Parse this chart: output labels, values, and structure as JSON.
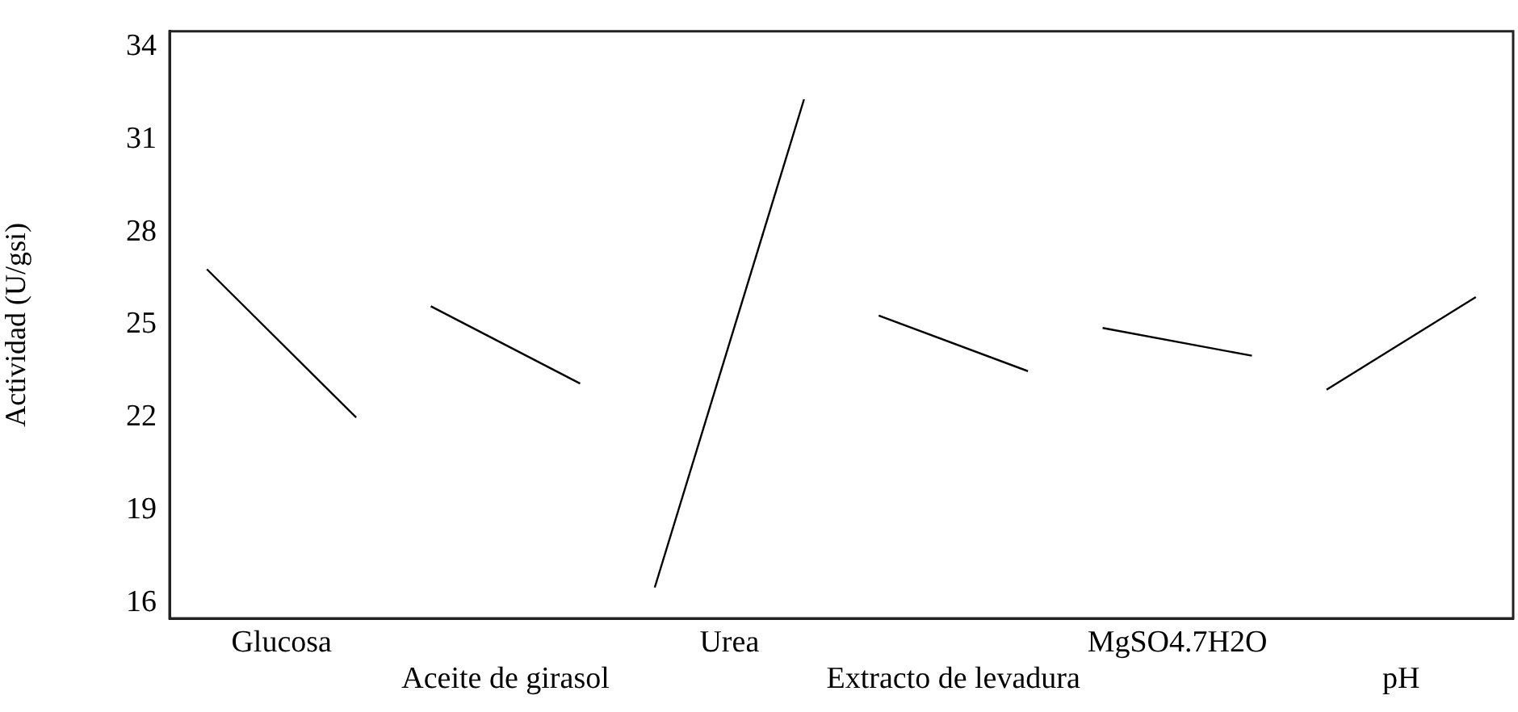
{
  "chart_data": {
    "type": "line",
    "ylabel": "Actividad (U/gsi)",
    "categories": [
      null,
      "Glucosa",
      null,
      null,
      "Aceite de girasol",
      null,
      null,
      "Urea",
      null,
      null,
      "Extracto de levadura",
      null,
      null,
      "MgSO4.7H2O",
      null,
      null,
      "pH",
      null
    ],
    "series": [
      {
        "color": "#000000",
        "values": [
          26.8,
          null,
          22.0,
          null,
          null,
          null,
          null,
          null,
          null,
          null,
          null,
          null,
          null,
          null,
          null,
          null,
          null,
          null
        ]
      },
      {
        "color": "#000000",
        "values": [
          null,
          null,
          null,
          25.6,
          null,
          23.1,
          null,
          null,
          null,
          null,
          null,
          null,
          null,
          null,
          null,
          null,
          null,
          null
        ]
      },
      {
        "color": "#000000",
        "values": [
          null,
          null,
          null,
          null,
          null,
          null,
          16.5,
          null,
          32.3,
          null,
          null,
          null,
          null,
          null,
          null,
          null,
          null,
          null
        ]
      },
      {
        "color": "#000000",
        "values": [
          null,
          null,
          null,
          null,
          null,
          null,
          null,
          null,
          null,
          25.3,
          null,
          23.5,
          null,
          null,
          null,
          null,
          null,
          null
        ]
      },
      {
        "color": "#000000",
        "values": [
          null,
          null,
          null,
          null,
          null,
          null,
          null,
          null,
          null,
          null,
          null,
          null,
          24.9,
          null,
          24.0,
          null,
          null,
          null
        ]
      },
      {
        "color": "#000000",
        "values": [
          null,
          null,
          null,
          null,
          null,
          null,
          null,
          null,
          null,
          null,
          null,
          null,
          null,
          null,
          null,
          22.9,
          null,
          25.9
        ]
      }
    ],
    "ylim": [
      15.5,
      34.5
    ],
    "yticks": [
      16,
      19,
      22,
      25,
      28,
      31,
      34
    ],
    "grid": false,
    "legend": false,
    "marker": "none",
    "line_style": "solid"
  }
}
